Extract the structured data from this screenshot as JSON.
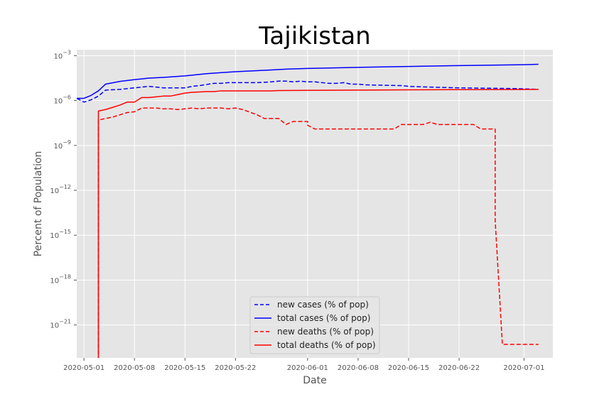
{
  "chart_data": {
    "type": "line",
    "title": "Tajikistan",
    "xlabel": "Date",
    "ylabel": "Percent of Population",
    "y_scale": "log",
    "ylim_exponent": [
      -23.2,
      -2.6
    ],
    "xlim": [
      "2020-04-30",
      "2020-07-05"
    ],
    "grid": true,
    "legend_position": "lower center",
    "x_ticks": [
      "2020-05-01",
      "2020-05-08",
      "2020-05-15",
      "2020-05-22",
      "2020-06-01",
      "2020-06-08",
      "2020-06-15",
      "2020-06-22",
      "2020-07-01"
    ],
    "y_ticks": [
      {
        "exp": -3,
        "base": "10",
        "sup": "−3"
      },
      {
        "exp": -6,
        "base": "10",
        "sup": "−6"
      },
      {
        "exp": -9,
        "base": "10",
        "sup": "−9"
      },
      {
        "exp": -12,
        "base": "10",
        "sup": "−12"
      },
      {
        "exp": -15,
        "base": "10",
        "sup": "−15"
      },
      {
        "exp": -18,
        "base": "10",
        "sup": "−18"
      },
      {
        "exp": -21,
        "base": "10",
        "sup": "−21"
      }
    ],
    "series": [
      {
        "name": "new cases (% of pop)",
        "color": "#0000ff",
        "dash": "dashed",
        "points": [
          [
            "2020-04-30",
            -5.85
          ],
          [
            "2020-05-01",
            -6.1
          ],
          [
            "2020-05-02",
            -5.95
          ],
          [
            "2020-05-03",
            -5.7
          ],
          [
            "2020-05-04",
            -5.3
          ],
          [
            "2020-05-06",
            -5.25
          ],
          [
            "2020-05-08",
            -5.15
          ],
          [
            "2020-05-09",
            -5.1
          ],
          [
            "2020-05-10",
            -5.05
          ],
          [
            "2020-05-11",
            -5.1
          ],
          [
            "2020-05-12",
            -5.15
          ],
          [
            "2020-05-15",
            -5.15
          ],
          [
            "2020-05-16",
            -5.05
          ],
          [
            "2020-05-17",
            -5.0
          ],
          [
            "2020-05-19",
            -4.85
          ],
          [
            "2020-05-20",
            -4.85
          ],
          [
            "2020-05-21",
            -4.8
          ],
          [
            "2020-05-22",
            -4.8
          ],
          [
            "2020-05-25",
            -4.8
          ],
          [
            "2020-05-27",
            -4.75
          ],
          [
            "2020-05-28",
            -4.7
          ],
          [
            "2020-05-29",
            -4.7
          ],
          [
            "2020-05-30",
            -4.75
          ],
          [
            "2020-05-31",
            -4.7
          ],
          [
            "2020-06-01",
            -4.75
          ],
          [
            "2020-06-02",
            -4.75
          ],
          [
            "2020-06-03",
            -4.8
          ],
          [
            "2020-06-04",
            -4.85
          ],
          [
            "2020-06-05",
            -4.85
          ],
          [
            "2020-06-06",
            -4.8
          ],
          [
            "2020-06-07",
            -4.9
          ],
          [
            "2020-06-08",
            -4.9
          ],
          [
            "2020-06-09",
            -4.95
          ],
          [
            "2020-06-14",
            -5.0
          ],
          [
            "2020-06-15",
            -5.05
          ],
          [
            "2020-06-18",
            -5.1
          ],
          [
            "2020-06-22",
            -5.15
          ],
          [
            "2020-06-30",
            -5.2
          ],
          [
            "2020-07-03",
            -5.25
          ]
        ]
      },
      {
        "name": "total cases (% of pop)",
        "color": "#0000ff",
        "dash": "solid",
        "points": [
          [
            "2020-04-30",
            -5.85
          ],
          [
            "2020-05-01",
            -5.85
          ],
          [
            "2020-05-02",
            -5.65
          ],
          [
            "2020-05-03",
            -5.35
          ],
          [
            "2020-05-04",
            -4.9
          ],
          [
            "2020-05-06",
            -4.72
          ],
          [
            "2020-05-08",
            -4.6
          ],
          [
            "2020-05-09",
            -4.55
          ],
          [
            "2020-05-10",
            -4.5
          ],
          [
            "2020-05-12",
            -4.45
          ],
          [
            "2020-05-15",
            -4.35
          ],
          [
            "2020-05-18",
            -4.2
          ],
          [
            "2020-05-21",
            -4.1
          ],
          [
            "2020-05-22",
            -4.07
          ],
          [
            "2020-05-25",
            -4.0
          ],
          [
            "2020-05-27",
            -3.95
          ],
          [
            "2020-05-29",
            -3.9
          ],
          [
            "2020-06-01",
            -3.85
          ],
          [
            "2020-06-04",
            -3.82
          ],
          [
            "2020-06-08",
            -3.78
          ],
          [
            "2020-06-15",
            -3.72
          ],
          [
            "2020-06-22",
            -3.66
          ],
          [
            "2020-07-01",
            -3.6
          ],
          [
            "2020-07-03",
            -3.57
          ]
        ]
      },
      {
        "name": "new deaths (% of pop)",
        "color": "#ff0000",
        "dash": "dashed",
        "points": [
          [
            "2020-05-03",
            -23.4
          ],
          [
            "2020-05-03",
            -7.3
          ],
          [
            "2020-05-05",
            -7.1
          ],
          [
            "2020-05-07",
            -6.8
          ],
          [
            "2020-05-08",
            -6.75
          ],
          [
            "2020-05-09",
            -6.5
          ],
          [
            "2020-05-11",
            -6.5
          ],
          [
            "2020-05-12",
            -6.55
          ],
          [
            "2020-05-13",
            -6.55
          ],
          [
            "2020-05-14",
            -6.6
          ],
          [
            "2020-05-15",
            -6.55
          ],
          [
            "2020-05-16",
            -6.5
          ],
          [
            "2020-05-17",
            -6.55
          ],
          [
            "2020-05-18",
            -6.5
          ],
          [
            "2020-05-20",
            -6.5
          ],
          [
            "2020-05-21",
            -6.55
          ],
          [
            "2020-05-22",
            -6.5
          ],
          [
            "2020-05-23",
            -6.6
          ],
          [
            "2020-05-25",
            -6.95
          ],
          [
            "2020-05-26",
            -7.2
          ],
          [
            "2020-05-27",
            -7.2
          ],
          [
            "2020-05-28",
            -7.2
          ],
          [
            "2020-05-29",
            -7.6
          ],
          [
            "2020-05-30",
            -7.4
          ],
          [
            "2020-06-01",
            -7.4
          ],
          [
            "2020-06-01",
            -7.65
          ],
          [
            "2020-06-02",
            -7.9
          ],
          [
            "2020-06-13",
            -7.9
          ],
          [
            "2020-06-14",
            -7.6
          ],
          [
            "2020-06-17",
            -7.6
          ],
          [
            "2020-06-18",
            -7.45
          ],
          [
            "2020-06-19",
            -7.6
          ],
          [
            "2020-06-24",
            -7.6
          ],
          [
            "2020-06-25",
            -7.9
          ],
          [
            "2020-06-26",
            -7.9
          ],
          [
            "2020-06-27",
            -7.9
          ],
          [
            "2020-06-27",
            -14.0
          ],
          [
            "2020-06-28",
            -22.3
          ],
          [
            "2020-07-03",
            -22.3
          ]
        ]
      },
      {
        "name": "total deaths (% of pop)",
        "color": "#ff0000",
        "dash": "solid",
        "points": [
          [
            "2020-05-03",
            -23.4
          ],
          [
            "2020-05-03",
            -6.7
          ],
          [
            "2020-05-04",
            -6.6
          ],
          [
            "2020-05-05",
            -6.45
          ],
          [
            "2020-05-06",
            -6.3
          ],
          [
            "2020-05-07",
            -6.1
          ],
          [
            "2020-05-08",
            -6.1
          ],
          [
            "2020-05-09",
            -5.8
          ],
          [
            "2020-05-10",
            -5.8
          ],
          [
            "2020-05-11",
            -5.75
          ],
          [
            "2020-05-12",
            -5.7
          ],
          [
            "2020-05-13",
            -5.7
          ],
          [
            "2020-05-15",
            -5.5
          ],
          [
            "2020-05-16",
            -5.45
          ],
          [
            "2020-05-18",
            -5.4
          ],
          [
            "2020-05-19",
            -5.4
          ],
          [
            "2020-05-20",
            -5.35
          ],
          [
            "2020-05-23",
            -5.35
          ],
          [
            "2020-05-27",
            -5.35
          ],
          [
            "2020-05-28",
            -5.33
          ],
          [
            "2020-06-01",
            -5.32
          ],
          [
            "2020-06-08",
            -5.3
          ],
          [
            "2020-06-15",
            -5.28
          ],
          [
            "2020-06-22",
            -5.27
          ],
          [
            "2020-07-01",
            -5.26
          ],
          [
            "2020-07-03",
            -5.25
          ]
        ]
      }
    ]
  }
}
